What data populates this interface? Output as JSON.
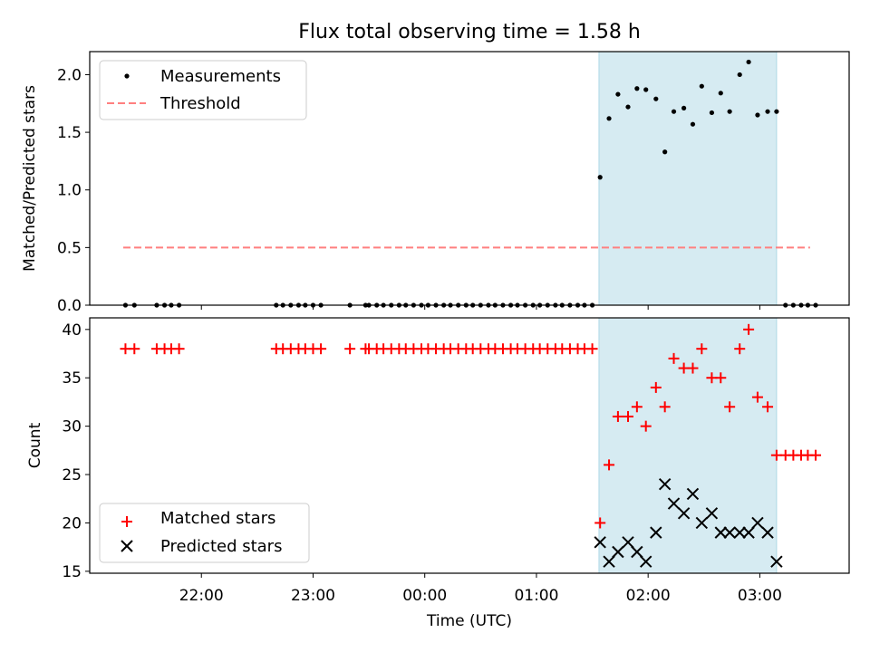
{
  "title": "Flux total observing time = 1.58 h",
  "colors": {
    "matched": "#ff0000",
    "predicted": "#000000",
    "threshold": "#ff7f7f",
    "span": "#add8e6"
  },
  "chart_data": [
    {
      "type": "scatter",
      "title": "Flux total observing time = 1.58 h",
      "ylabel": "Matched/Predicted stars",
      "ylim": [
        0,
        2.2
      ],
      "yticks": [
        0.0,
        0.5,
        1.0,
        1.5,
        2.0
      ],
      "ytick_labels": [
        "0.0",
        "0.5",
        "1.0",
        "1.5",
        "2.0"
      ],
      "x_unit": "hours since 00:00 UTC",
      "legend_position": "upper-left",
      "highlight_span": [
        1.56,
        3.15
      ],
      "threshold": {
        "name": "Threshold",
        "y": 0.5,
        "x_range": [
          -2.7,
          3.45
        ]
      },
      "series": [
        {
          "name": "Measurements",
          "x": [
            -2.68,
            -2.6,
            -2.4,
            -2.33,
            -2.27,
            -2.2,
            -1.33,
            -1.27,
            -1.2,
            -1.13,
            -1.07,
            -1.0,
            -0.93,
            -0.67,
            -0.53,
            -0.5,
            -0.43,
            -0.37,
            -0.3,
            -0.23,
            -0.17,
            -0.1,
            -0.03,
            0.03,
            0.1,
            0.17,
            0.23,
            0.3,
            0.37,
            0.43,
            0.5,
            0.57,
            0.63,
            0.7,
            0.77,
            0.83,
            0.9,
            0.97,
            1.03,
            1.1,
            1.17,
            1.23,
            1.3,
            1.37,
            1.43,
            1.5,
            1.57,
            1.65,
            1.73,
            1.82,
            1.9,
            1.98,
            2.07,
            2.15,
            2.23,
            2.32,
            2.4,
            2.48,
            2.57,
            2.65,
            2.73,
            2.82,
            2.9,
            2.98,
            3.07,
            3.15,
            3.23,
            3.3,
            3.37,
            3.43,
            3.5
          ],
          "y": [
            0,
            0,
            0,
            0,
            0,
            0,
            0,
            0,
            0,
            0,
            0,
            0,
            0,
            0,
            0,
            0,
            0,
            0,
            0,
            0,
            0,
            0,
            0,
            0,
            0,
            0,
            0,
            0,
            0,
            0,
            0,
            0,
            0,
            0,
            0,
            0,
            0,
            0,
            0,
            0,
            0,
            0,
            0,
            0,
            0,
            0,
            1.11,
            1.62,
            1.83,
            1.72,
            1.88,
            1.87,
            1.79,
            1.33,
            1.68,
            1.71,
            1.57,
            1.9,
            1.67,
            1.84,
            1.68,
            2.0,
            2.11,
            1.65,
            1.68,
            1.68,
            0,
            0,
            0,
            0,
            0
          ]
        }
      ],
      "legend": [
        {
          "label": "Measurements",
          "marker": "dot"
        },
        {
          "label": "Threshold",
          "marker": "dash"
        }
      ]
    },
    {
      "type": "scatter",
      "xlabel": "Time (UTC)",
      "ylabel": "Count",
      "ylim": [
        14.8,
        41.2
      ],
      "yticks": [
        15,
        20,
        25,
        30,
        35,
        40
      ],
      "ytick_labels": [
        "15",
        "20",
        "25",
        "30",
        "35",
        "40"
      ],
      "xlim": [
        -3.0,
        3.8
      ],
      "xticks": [
        -2,
        -1,
        0,
        1,
        2,
        3
      ],
      "xtick_labels": [
        "22:00",
        "23:00",
        "00:00",
        "01:00",
        "02:00",
        "03:00"
      ],
      "legend_position": "lower-left",
      "highlight_span": [
        1.56,
        3.15
      ],
      "series": [
        {
          "name": "Matched stars",
          "marker": "plus",
          "x": [
            -2.68,
            -2.6,
            -2.4,
            -2.33,
            -2.27,
            -2.2,
            -1.33,
            -1.27,
            -1.2,
            -1.13,
            -1.07,
            -1.0,
            -0.93,
            -0.67,
            -0.53,
            -0.5,
            -0.43,
            -0.37,
            -0.3,
            -0.23,
            -0.17,
            -0.1,
            -0.03,
            0.03,
            0.1,
            0.17,
            0.23,
            0.3,
            0.37,
            0.43,
            0.5,
            0.57,
            0.63,
            0.7,
            0.77,
            0.83,
            0.9,
            0.97,
            1.03,
            1.1,
            1.17,
            1.23,
            1.3,
            1.37,
            1.43,
            1.5,
            1.57,
            1.65,
            1.73,
            1.82,
            1.9,
            1.98,
            2.07,
            2.15,
            2.23,
            2.32,
            2.4,
            2.48,
            2.57,
            2.65,
            2.73,
            2.82,
            2.9,
            2.98,
            3.07,
            3.15,
            3.23,
            3.3,
            3.37,
            3.43,
            3.5
          ],
          "y": [
            38,
            38,
            38,
            38,
            38,
            38,
            38,
            38,
            38,
            38,
            38,
            38,
            38,
            38,
            38,
            38,
            38,
            38,
            38,
            38,
            38,
            38,
            38,
            38,
            38,
            38,
            38,
            38,
            38,
            38,
            38,
            38,
            38,
            38,
            38,
            38,
            38,
            38,
            38,
            38,
            38,
            38,
            38,
            38,
            38,
            38,
            20,
            26,
            31,
            31,
            32,
            30,
            34,
            32,
            37,
            36,
            36,
            38,
            35,
            35,
            32,
            38,
            40,
            33,
            32,
            27,
            27,
            27,
            27,
            27,
            27
          ]
        },
        {
          "name": "Predicted stars",
          "marker": "x",
          "x": [
            1.57,
            1.65,
            1.73,
            1.82,
            1.9,
            1.98,
            2.07,
            2.15,
            2.23,
            2.32,
            2.4,
            2.48,
            2.57,
            2.65,
            2.73,
            2.82,
            2.9,
            2.98,
            3.07,
            3.15
          ],
          "y": [
            18,
            16,
            17,
            18,
            17,
            16,
            19,
            24,
            22,
            21,
            23,
            20,
            21,
            19,
            19,
            19,
            19,
            20,
            19,
            16
          ]
        }
      ],
      "legend": [
        {
          "label": "Matched stars",
          "marker": "plus"
        },
        {
          "label": "Predicted stars",
          "marker": "x"
        }
      ]
    }
  ]
}
